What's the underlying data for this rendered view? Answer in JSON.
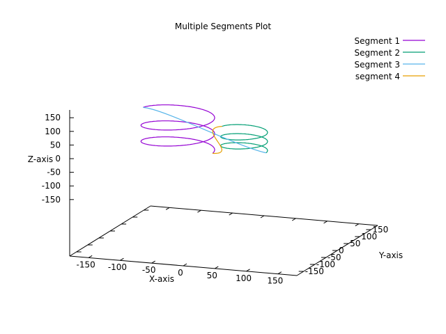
{
  "chart_data": {
    "type": "line3d",
    "title": "Multiple Segments Plot",
    "xlabel": "X-axis",
    "ylabel": "Y-axis",
    "zlabel": "Z-axis",
    "xlim": [
      -180,
      180
    ],
    "ylim": [
      -180,
      180
    ],
    "zlim": [
      -180,
      180
    ],
    "x_ticks": [
      "-150",
      "-100",
      "-50",
      "0",
      "50",
      "100",
      "150"
    ],
    "y_ticks": [
      "-150",
      "-100",
      "-50",
      "0",
      "50",
      "100",
      "150"
    ],
    "z_ticks": [
      "150",
      "100",
      "50",
      "0",
      "-50",
      "-100",
      "-150"
    ],
    "legend_position": "top-right",
    "grid": false,
    "series": [
      {
        "name": "Segment 1",
        "color": "#9400d3",
        "description_type": "helix",
        "center_x": -30,
        "center_y": 60,
        "radius": 55,
        "z_from": -5,
        "z_to": 110,
        "turns": 2.5
      },
      {
        "name": "Segment 2",
        "color": "#009e73",
        "description_type": "helix",
        "center_x": 75,
        "center_y": 60,
        "radius": 35,
        "z_from": 10,
        "z_to": 75,
        "turns": 2.5
      },
      {
        "name": "Segment 3",
        "color": "#56b4e9",
        "description_type": "arc",
        "from": "top of segment 1",
        "to": "top of segment 2"
      },
      {
        "name": "segment 4",
        "color": "#e69f00",
        "description_type": "arc",
        "from": "bottom of segment 1",
        "to": "bottom of segment 2"
      }
    ]
  }
}
